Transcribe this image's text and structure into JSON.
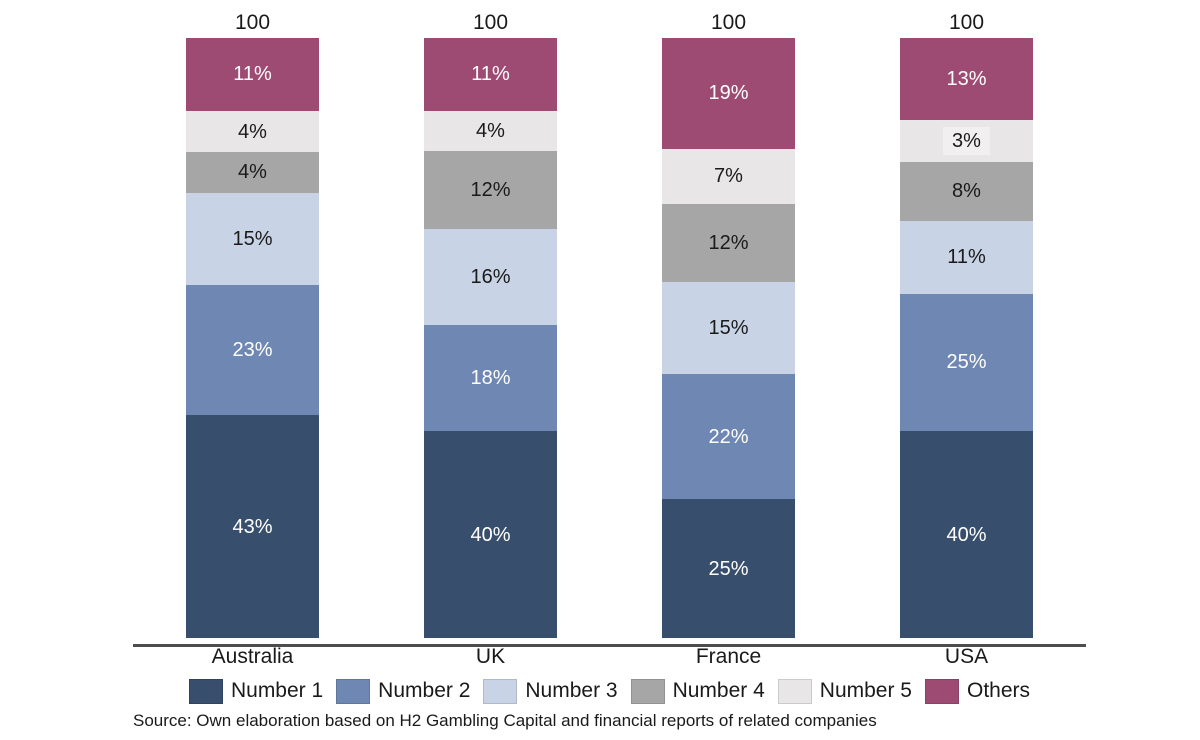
{
  "chart_data": {
    "type": "bar",
    "subtype": "stacked-100-percent",
    "title": "",
    "xlabel": "",
    "ylabel": "",
    "grid": false,
    "legend_position": "bottom",
    "categories": [
      "Australia",
      "UK",
      "France",
      "USA"
    ],
    "totals": [
      "100",
      "100",
      "100",
      "100"
    ],
    "value_suffix": "%",
    "stack_order_top_to_bottom": [
      "Others",
      "Number 5",
      "Number 4",
      "Number 3",
      "Number 2",
      "Number 1"
    ],
    "series": [
      {
        "name": "Number 1",
        "color": "#374E6D",
        "label_color": "#FFFFFF",
        "values": [
          43,
          40,
          25,
          40
        ]
      },
      {
        "name": "Number 2",
        "color": "#6E87B3",
        "label_color": "#FFFFFF",
        "values": [
          23,
          18,
          22,
          25
        ]
      },
      {
        "name": "Number 3",
        "color": "#C8D3E6",
        "label_color": "#1A1A1A",
        "values": [
          15,
          16,
          15,
          11
        ]
      },
      {
        "name": "Number 4",
        "color": "#A6A6A6",
        "label_color": "#1A1A1A",
        "values": [
          4,
          12,
          12,
          8
        ]
      },
      {
        "name": "Number 5",
        "color": "#E8E6E7",
        "label_color": "#1A1A1A",
        "values": [
          4,
          4,
          7,
          3
        ]
      },
      {
        "name": "Others",
        "color": "#9D4B73",
        "label_color": "#FFFFFF",
        "values": [
          11,
          11,
          19,
          13
        ]
      }
    ],
    "small_segment_label_bg": "#F1EFF0",
    "axis_line_color": "#4D4D4D"
  },
  "footer": {
    "source": "Source: Own elaboration based on H2 Gambling Capital and financial reports of related companies"
  }
}
